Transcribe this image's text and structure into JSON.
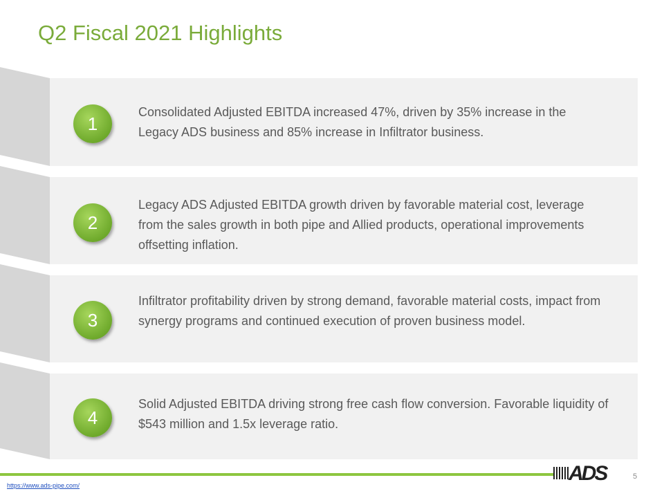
{
  "header": {
    "title": "Q2 Fiscal 2021 Highlights"
  },
  "items": [
    {
      "number": "1",
      "text": "Consolidated Adjusted EBITDA increased 47%, driven by 35% increase in the Legacy ADS business and 85% increase in Infiltrator business."
    },
    {
      "number": "2",
      "text": "Legacy ADS Adjusted EBITDA growth driven by favorable material cost, leverage from the sales growth in both pipe and Allied products, operational improvements offsetting inflation."
    },
    {
      "number": "3",
      "text": "Infiltrator profitability driven by strong demand, favorable material costs, impact from synergy programs and continued execution of proven business model."
    },
    {
      "number": "4",
      "text": "Solid Adjusted EBITDA driving strong free cash flow conversion. Favorable liquidity of $543 million and 1.5x leverage ratio."
    }
  ],
  "footer": {
    "link": "https://www.ads-pipe.com/",
    "page_number": "5",
    "logo": "ADS"
  }
}
